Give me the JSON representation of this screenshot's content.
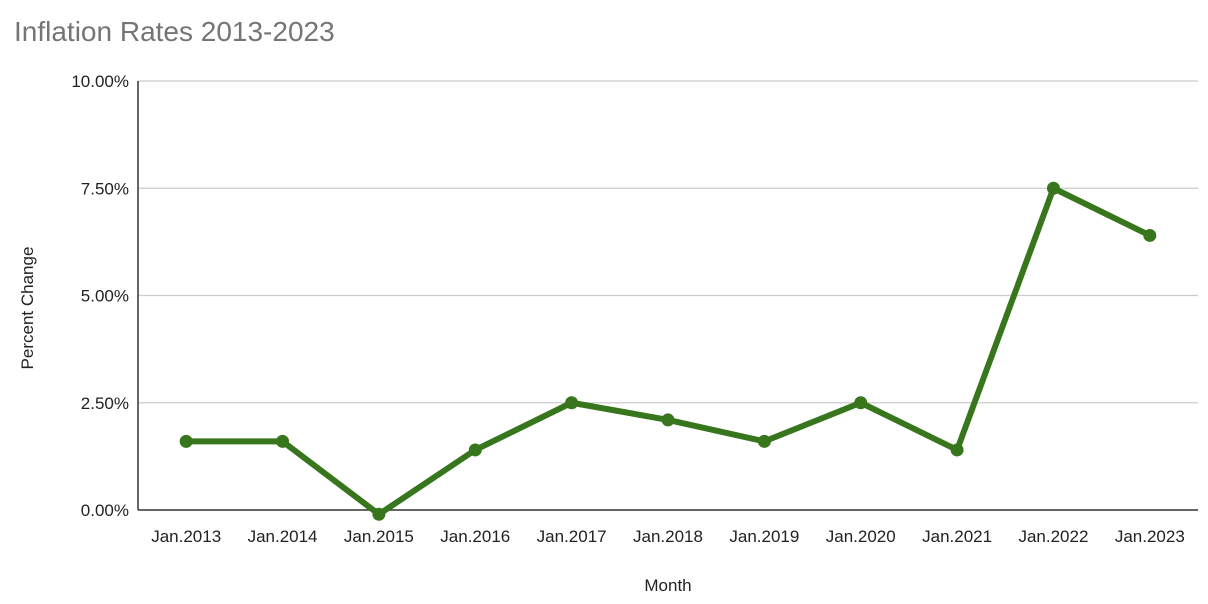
{
  "chart_data": {
    "type": "line",
    "title": "Inflation Rates 2013-2023",
    "xlabel": "Month",
    "ylabel": "Percent Change",
    "categories": [
      "Jan.2013",
      "Jan.2014",
      "Jan.2015",
      "Jan.2016",
      "Jan.2017",
      "Jan.2018",
      "Jan.2019",
      "Jan.2020",
      "Jan.2021",
      "Jan.2022",
      "Jan.2023"
    ],
    "series": [
      {
        "values": [
          1.6,
          1.6,
          -0.1,
          1.4,
          2.5,
          2.1,
          1.6,
          2.5,
          1.4,
          7.5,
          6.4
        ],
        "color": "#38761d"
      }
    ],
    "ylim": [
      0,
      10
    ],
    "yticks": [
      0,
      2.5,
      5,
      7.5,
      10
    ],
    "ytick_labels": [
      "0.00%",
      "2.50%",
      "5.00%",
      "7.50%",
      "10.00%"
    ],
    "grid": true,
    "legend": "none"
  }
}
